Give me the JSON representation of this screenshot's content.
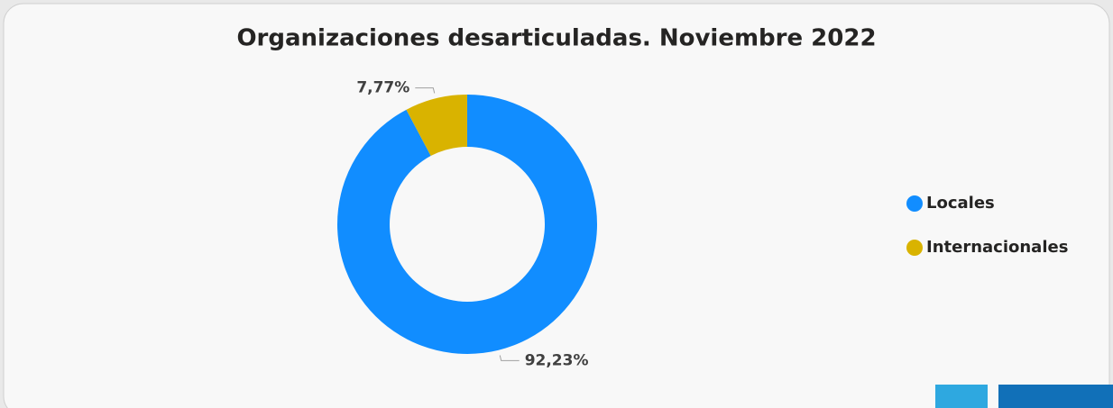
{
  "chart_data": {
    "type": "donut",
    "title": "Organizaciones desarticuladas. Noviembre 2022",
    "categories": [
      "Locales",
      "Internacionales"
    ],
    "values": [
      92.23,
      7.77
    ],
    "value_labels": [
      "92,23%",
      "7,77%"
    ],
    "colors": [
      "#118dff",
      "#d9b300"
    ],
    "legend": "right"
  }
}
